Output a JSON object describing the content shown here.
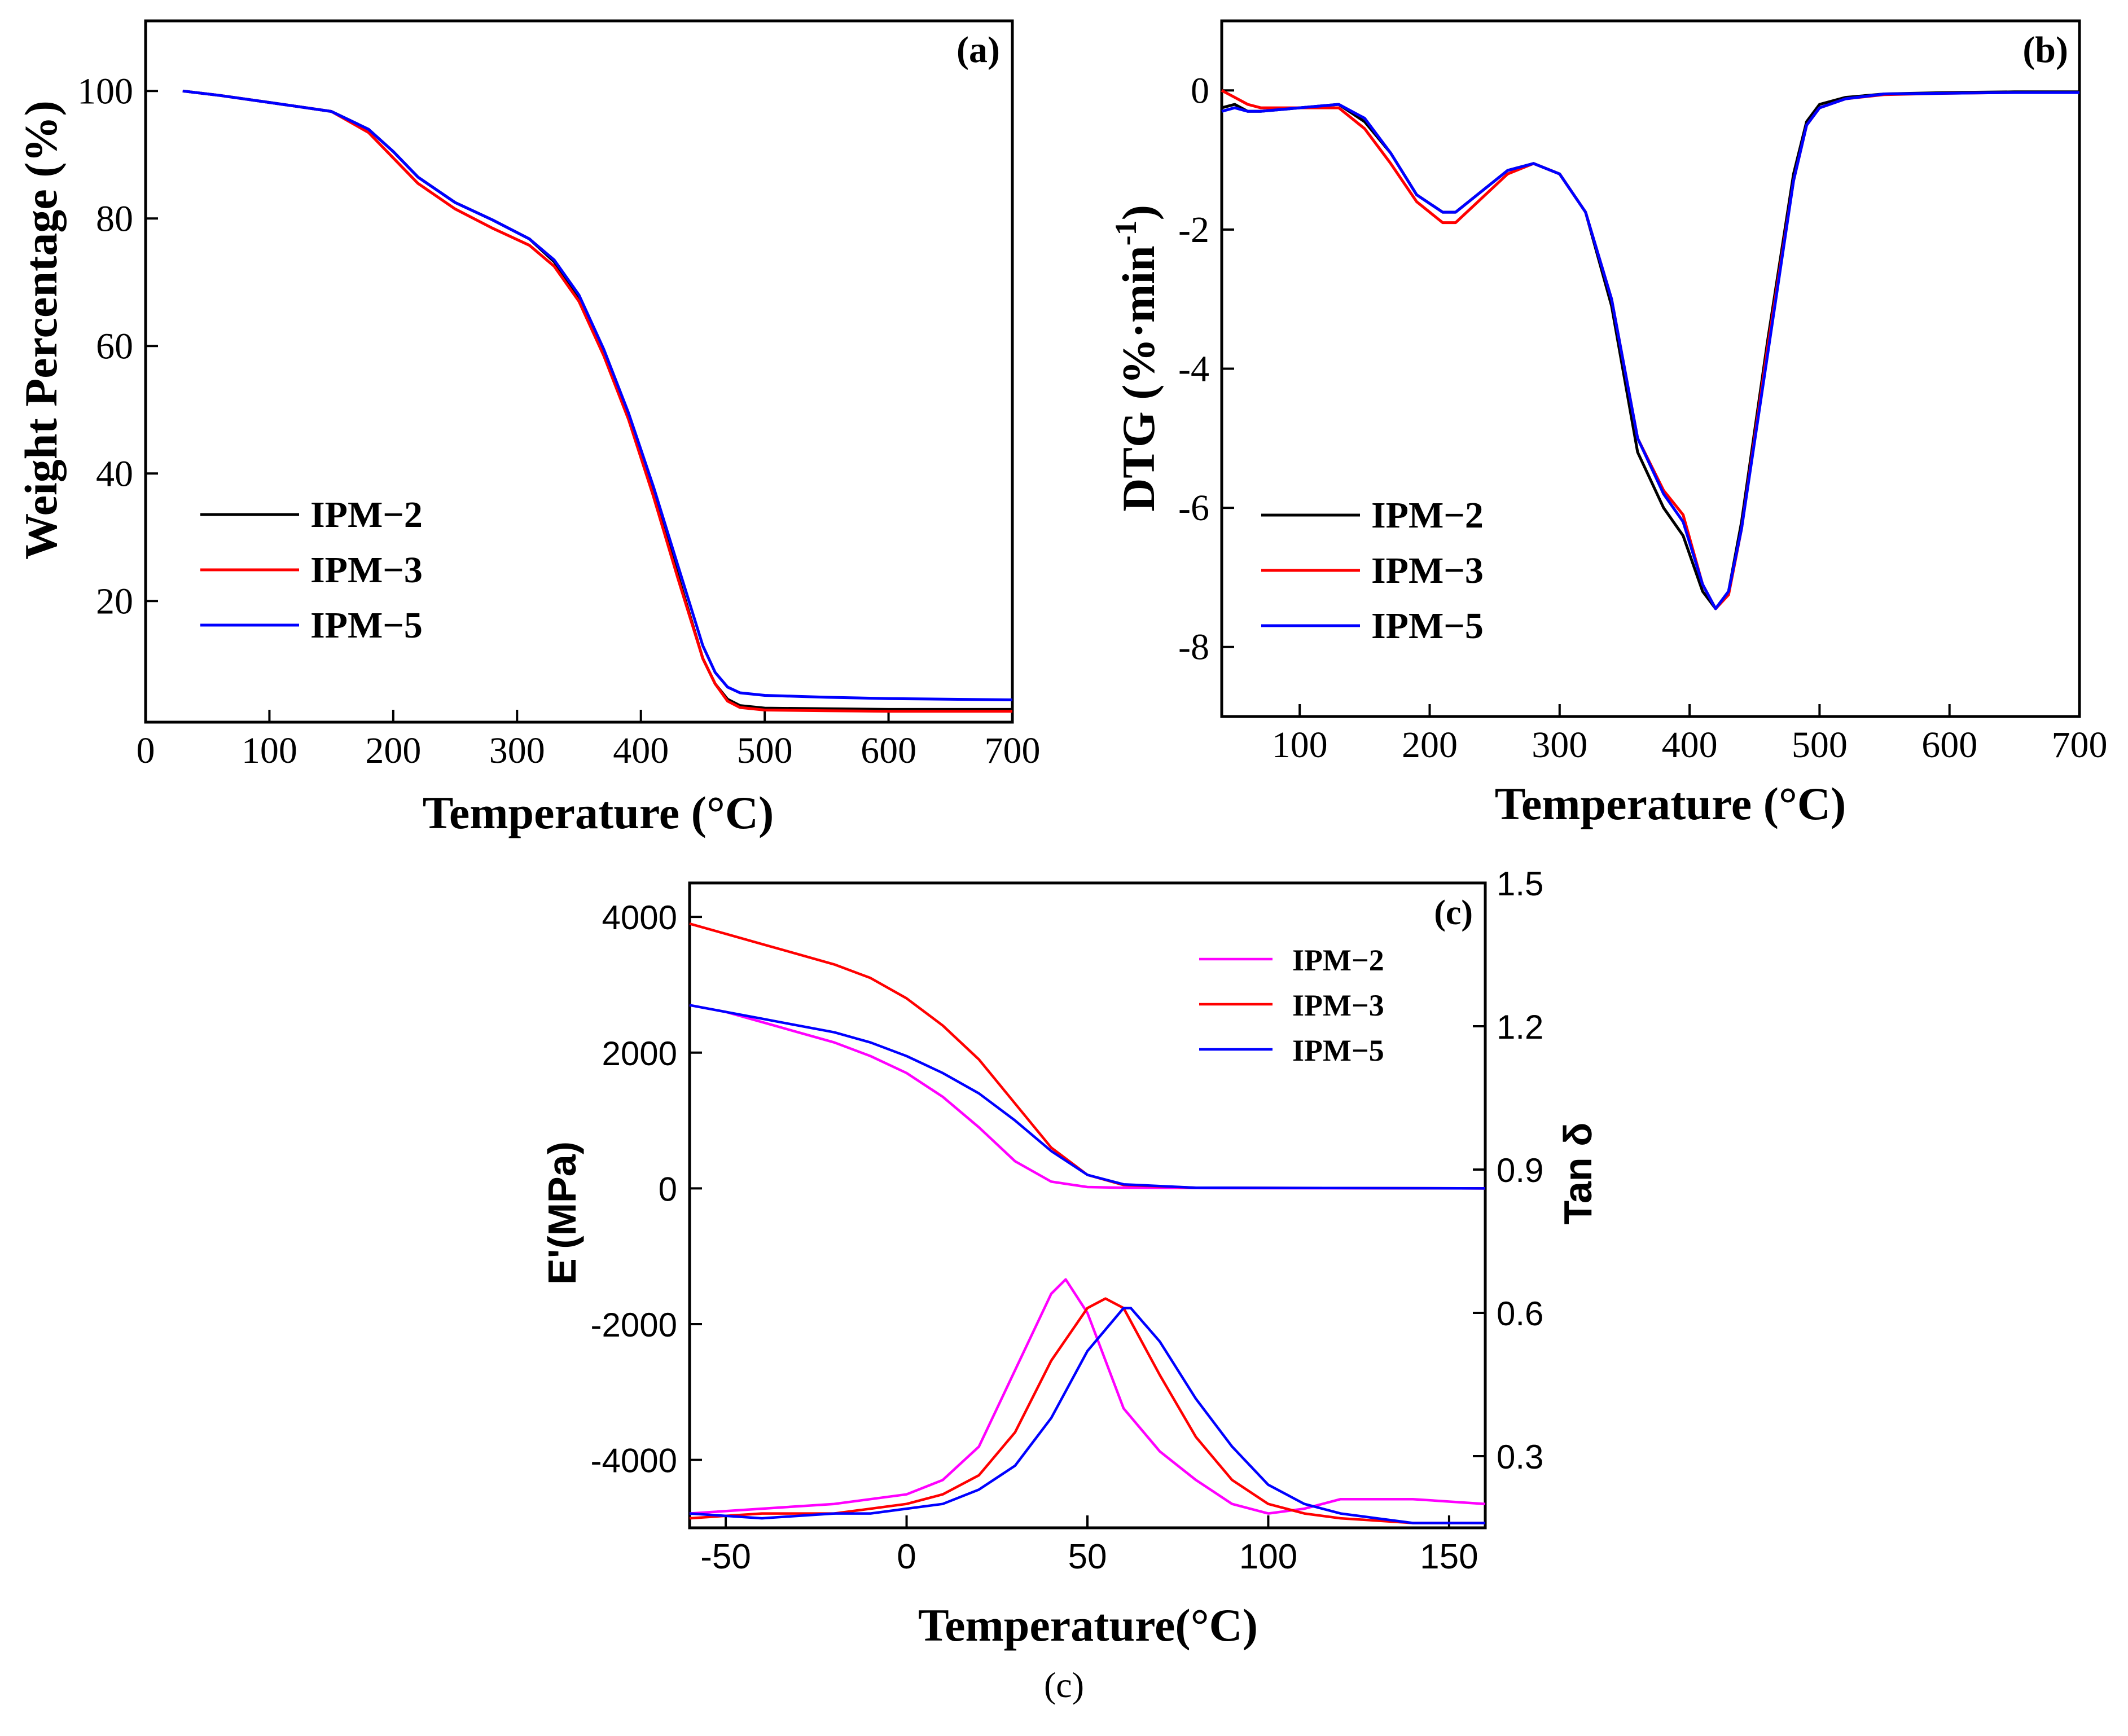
{
  "figure": {
    "caption": "(c)"
  },
  "chart_data": [
    {
      "type": "line",
      "panel": "(a)",
      "xlabel": "Temperature (°C)",
      "ylabel": "Weight Percentage (%)",
      "xlim": [
        0,
        700
      ],
      "ylim": [
        1,
        111
      ],
      "xticks": [
        0,
        100,
        200,
        300,
        400,
        500,
        600,
        700
      ],
      "yticks": [
        20,
        40,
        60,
        80,
        100
      ],
      "legend_position": "center-left",
      "series": [
        {
          "name": "IPM−2",
          "color": "#000000",
          "x": [
            30,
            60,
            100,
            150,
            180,
            200,
            220,
            250,
            280,
            310,
            330,
            350,
            370,
            390,
            410,
            430,
            450,
            460,
            470,
            480,
            500,
            550,
            600,
            700
          ],
          "y": [
            100,
            99.3,
            98.2,
            96.8,
            94,
            90.5,
            86.5,
            82.5,
            79.8,
            76.8,
            73.2,
            67.5,
            59,
            49,
            37,
            24,
            11,
            7,
            4.6,
            3.6,
            3.2,
            3.1,
            3.0,
            3.0
          ]
        },
        {
          "name": "IPM−3",
          "color": "#ff0000",
          "x": [
            30,
            60,
            100,
            150,
            180,
            200,
            220,
            250,
            280,
            310,
            330,
            350,
            370,
            390,
            410,
            430,
            450,
            460,
            470,
            480,
            500,
            550,
            600,
            700
          ],
          "y": [
            100,
            99.3,
            98.2,
            96.8,
            93.5,
            89.5,
            85.5,
            81.5,
            78.5,
            75.8,
            72.5,
            67,
            58.5,
            48.5,
            36.5,
            23.5,
            11,
            7,
            4.3,
            3.3,
            2.9,
            2.8,
            2.7,
            2.7
          ]
        },
        {
          "name": "IPM−5",
          "color": "#0000ff",
          "x": [
            30,
            60,
            100,
            150,
            180,
            200,
            220,
            250,
            280,
            310,
            330,
            350,
            370,
            390,
            410,
            430,
            450,
            460,
            470,
            480,
            500,
            550,
            600,
            700
          ],
          "y": [
            100,
            99.3,
            98.2,
            96.8,
            94,
            90.5,
            86.5,
            82.5,
            79.8,
            76.8,
            73.5,
            68,
            59.5,
            49.5,
            38,
            25.5,
            13,
            8.8,
            6.5,
            5.6,
            5.2,
            4.9,
            4.7,
            4.5
          ]
        }
      ]
    },
    {
      "type": "line",
      "panel": "(b)",
      "xlabel": "Temperature (°C)",
      "ylabel": "DTG (%·min⁻¹)",
      "ylabel_main": "DTG (%·min",
      "ylabel_sup": "-1",
      "ylabel_close": ")",
      "xlim": [
        40,
        700
      ],
      "ylim": [
        -9,
        1
      ],
      "xticks": [
        100,
        200,
        300,
        400,
        500,
        600,
        700
      ],
      "yticks": [
        0,
        -2,
        -4,
        -6,
        -8
      ],
      "ytick_labels": [
        "0",
        "-2",
        "-4",
        "-6",
        "-8"
      ],
      "legend_position": "lower-left",
      "series": [
        {
          "name": "IPM−2",
          "color": "#000000",
          "x": [
            40,
            50,
            60,
            70,
            100,
            130,
            150,
            170,
            190,
            210,
            220,
            240,
            260,
            280,
            300,
            320,
            340,
            360,
            380,
            395,
            410,
            420,
            430,
            440,
            460,
            480,
            490,
            500,
            520,
            550,
            600,
            650,
            700
          ],
          "y": [
            -0.25,
            -0.2,
            -0.3,
            -0.3,
            -0.25,
            -0.2,
            -0.45,
            -0.9,
            -1.5,
            -1.75,
            -1.75,
            -1.45,
            -1.15,
            -1.05,
            -1.2,
            -1.75,
            -3.1,
            -5.2,
            -6.0,
            -6.4,
            -7.2,
            -7.45,
            -7.2,
            -6.2,
            -3.6,
            -1.2,
            -0.45,
            -0.2,
            -0.1,
            -0.05,
            -0.03,
            -0.02,
            -0.02
          ]
        },
        {
          "name": "IPM−3",
          "color": "#ff0000",
          "x": [
            40,
            50,
            60,
            70,
            100,
            130,
            150,
            170,
            190,
            210,
            220,
            240,
            260,
            280,
            300,
            320,
            340,
            360,
            380,
            395,
            410,
            420,
            430,
            440,
            460,
            480,
            490,
            500,
            520,
            550,
            600,
            650,
            700
          ],
          "y": [
            0.0,
            -0.1,
            -0.2,
            -0.25,
            -0.25,
            -0.25,
            -0.55,
            -1.05,
            -1.6,
            -1.9,
            -1.9,
            -1.55,
            -1.2,
            -1.05,
            -1.2,
            -1.75,
            -3.0,
            -5.0,
            -5.75,
            -6.1,
            -7.1,
            -7.45,
            -7.25,
            -6.3,
            -3.7,
            -1.3,
            -0.5,
            -0.25,
            -0.12,
            -0.06,
            -0.04,
            -0.03,
            -0.03
          ]
        },
        {
          "name": "IPM−5",
          "color": "#0000ff",
          "x": [
            40,
            50,
            60,
            70,
            100,
            130,
            150,
            170,
            190,
            210,
            220,
            240,
            260,
            280,
            300,
            320,
            340,
            360,
            380,
            395,
            410,
            420,
            430,
            440,
            460,
            480,
            490,
            500,
            520,
            550,
            600,
            650,
            700
          ],
          "y": [
            -0.3,
            -0.25,
            -0.3,
            -0.3,
            -0.25,
            -0.2,
            -0.4,
            -0.9,
            -1.5,
            -1.75,
            -1.75,
            -1.45,
            -1.15,
            -1.05,
            -1.2,
            -1.75,
            -3.0,
            -5.0,
            -5.8,
            -6.2,
            -7.1,
            -7.45,
            -7.2,
            -6.3,
            -3.8,
            -1.3,
            -0.5,
            -0.25,
            -0.12,
            -0.05,
            -0.04,
            -0.03,
            -0.03
          ]
        }
      ]
    },
    {
      "type": "line",
      "panel": "(c)",
      "xlabel": "Temperature(°C)",
      "ylabel": "E'(MPa)",
      "y2label": "Tan δ",
      "xlim": [
        -60,
        160
      ],
      "ylim": [
        -5000,
        4500
      ],
      "y2lim": [
        0.15,
        1.5
      ],
      "xticks": [
        -50,
        0,
        50,
        100,
        150
      ],
      "yticks": [
        4000,
        2000,
        0,
        -2000,
        -4000
      ],
      "ytick_labels": [
        "4000",
        "2000",
        "0",
        "-2000",
        "-4000"
      ],
      "y2ticks": [
        1.5,
        1.2,
        0.9,
        0.6,
        0.3
      ],
      "y2tick_labels": [
        "1.5",
        "1.2",
        "0.9",
        "0.6",
        "0.3"
      ],
      "legend_position": "top-right",
      "storage_modulus": [
        {
          "name": "IPM−2",
          "color": "#ff00ff",
          "x": [
            -60,
            -50,
            -40,
            -30,
            -20,
            -10,
            0,
            10,
            20,
            30,
            40,
            50,
            60,
            80,
            160
          ],
          "y": [
            2700,
            2600,
            2450,
            2300,
            2150,
            1950,
            1700,
            1350,
            900,
            400,
            100,
            20,
            10,
            5,
            0
          ]
        },
        {
          "name": "IPM−3",
          "color": "#ff0000",
          "x": [
            -60,
            -50,
            -40,
            -30,
            -20,
            -10,
            0,
            10,
            20,
            30,
            40,
            50,
            60,
            80,
            160
          ],
          "y": [
            3900,
            3750,
            3600,
            3450,
            3300,
            3100,
            2800,
            2400,
            1900,
            1250,
            600,
            200,
            50,
            10,
            0
          ]
        },
        {
          "name": "IPM−5",
          "color": "#0000ff",
          "x": [
            -60,
            -50,
            -40,
            -30,
            -20,
            -10,
            0,
            10,
            20,
            30,
            40,
            50,
            60,
            80,
            160
          ],
          "y": [
            2700,
            2600,
            2500,
            2400,
            2300,
            2150,
            1950,
            1700,
            1400,
            1000,
            550,
            200,
            60,
            10,
            0
          ]
        }
      ],
      "tan_delta": [
        {
          "name": "IPM−2",
          "color": "#ff00ff",
          "x": [
            -60,
            -40,
            -20,
            -10,
            0,
            10,
            20,
            30,
            40,
            44,
            50,
            60,
            70,
            80,
            90,
            100,
            110,
            120,
            140,
            160
          ],
          "y": [
            0.18,
            0.19,
            0.2,
            0.21,
            0.22,
            0.25,
            0.32,
            0.48,
            0.64,
            0.67,
            0.6,
            0.4,
            0.31,
            0.25,
            0.2,
            0.18,
            0.19,
            0.21,
            0.21,
            0.2
          ]
        },
        {
          "name": "IPM−3",
          "color": "#ff0000",
          "x": [
            -60,
            -40,
            -20,
            0,
            10,
            20,
            30,
            40,
            50,
            55,
            60,
            70,
            80,
            90,
            100,
            110,
            120,
            140,
            160
          ],
          "y": [
            0.17,
            0.18,
            0.18,
            0.2,
            0.22,
            0.26,
            0.35,
            0.5,
            0.61,
            0.63,
            0.61,
            0.47,
            0.34,
            0.25,
            0.2,
            0.18,
            0.17,
            0.16,
            0.16
          ]
        },
        {
          "name": "IPM−5",
          "color": "#0000ff",
          "x": [
            -60,
            -40,
            -20,
            -10,
            0,
            10,
            20,
            30,
            40,
            50,
            60,
            62,
            70,
            80,
            90,
            100,
            110,
            120,
            130,
            140,
            160
          ],
          "y": [
            0.18,
            0.17,
            0.18,
            0.18,
            0.19,
            0.2,
            0.23,
            0.28,
            0.38,
            0.52,
            0.61,
            0.61,
            0.54,
            0.42,
            0.32,
            0.24,
            0.2,
            0.18,
            0.17,
            0.16,
            0.16
          ]
        }
      ]
    }
  ]
}
